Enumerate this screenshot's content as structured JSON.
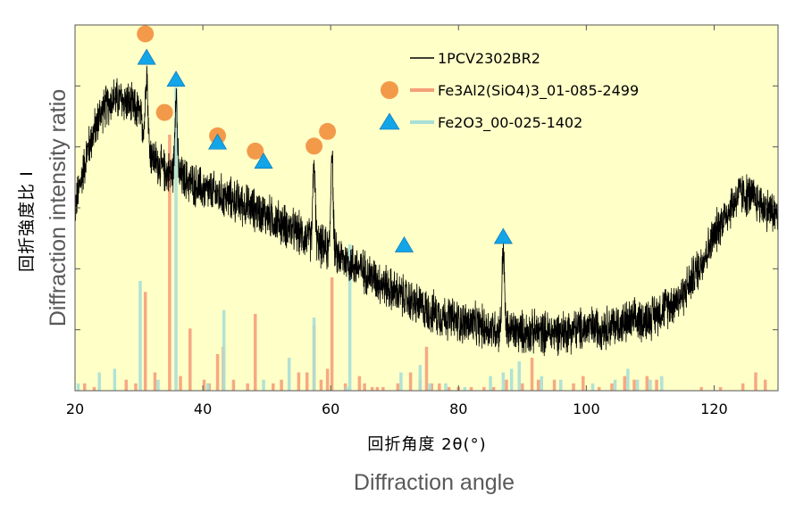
{
  "chart_data": {
    "type": "line",
    "xlim": [
      20,
      130
    ],
    "ylim": [
      0,
      100
    ],
    "x_ticks": [
      20,
      40,
      60,
      80,
      100,
      120
    ],
    "x_tick_labels": [
      "20",
      "40",
      "60",
      "80",
      "100",
      "120"
    ],
    "xlabel_jp": "回折角度 2θ(°)",
    "xlabel_en": "Diffraction angle",
    "ylabel_jp": "回折強度比 I",
    "ylabel_en": "Diffraction intensity ratio",
    "plot_background": "#ffffc8",
    "grid": false,
    "legend_position": "top-right",
    "series": [
      {
        "name": "1PCV2302BR2",
        "kind": "measured",
        "color": "#000000",
        "baseline_shape": [
          [
            20,
            50
          ],
          [
            22,
            66
          ],
          [
            24,
            76
          ],
          [
            26,
            80
          ],
          [
            28,
            79
          ],
          [
            30,
            76
          ],
          [
            32,
            64
          ],
          [
            34,
            60
          ],
          [
            36,
            59
          ],
          [
            40,
            55
          ],
          [
            45,
            52
          ],
          [
            50,
            48
          ],
          [
            55,
            43
          ],
          [
            60,
            38
          ],
          [
            65,
            33
          ],
          [
            70,
            27
          ],
          [
            75,
            22
          ],
          [
            80,
            19
          ],
          [
            85,
            17
          ],
          [
            90,
            16
          ],
          [
            95,
            16
          ],
          [
            100,
            17
          ],
          [
            105,
            18
          ],
          [
            110,
            20
          ],
          [
            115,
            26
          ],
          [
            118,
            35
          ],
          [
            121,
            46
          ],
          [
            124,
            54
          ],
          [
            126,
            53
          ],
          [
            128,
            50
          ],
          [
            130,
            48
          ]
        ],
        "noise_amplitude": 7,
        "peaks": [
          [
            31.2,
            88
          ],
          [
            35.8,
            82
          ],
          [
            57.4,
            62
          ],
          [
            60.2,
            66
          ],
          [
            87.0,
            39
          ]
        ]
      },
      {
        "name": "Fe3Al2(SiO4)3_01-085-2499",
        "kind": "reference",
        "color": "#f5a07a",
        "marker": "circle",
        "marker_color": "#f39a4a",
        "sticks": [
          [
            21.5,
            2
          ],
          [
            23,
            1
          ],
          [
            28,
            3
          ],
          [
            29.5,
            2
          ],
          [
            31,
            27
          ],
          [
            32.5,
            5
          ],
          [
            34.8,
            70
          ],
          [
            36.5,
            4
          ],
          [
            38,
            17
          ],
          [
            40.2,
            3
          ],
          [
            41,
            2
          ],
          [
            42.3,
            10
          ],
          [
            43.2,
            12
          ],
          [
            44.8,
            3
          ],
          [
            47,
            2
          ],
          [
            48.2,
            21
          ],
          [
            51,
            2
          ],
          [
            52.3,
            3
          ],
          [
            55,
            5
          ],
          [
            56.3,
            5
          ],
          [
            57.4,
            18
          ],
          [
            58.5,
            3
          ],
          [
            59.5,
            6
          ],
          [
            60.2,
            31
          ],
          [
            62.3,
            2
          ],
          [
            64.5,
            4
          ],
          [
            65.3,
            2
          ],
          [
            66.5,
            1
          ],
          [
            67.3,
            1
          ],
          [
            68.2,
            1
          ],
          [
            70.5,
            2
          ],
          [
            72.5,
            5
          ],
          [
            74,
            3
          ],
          [
            75,
            12
          ],
          [
            75.8,
            2
          ],
          [
            77,
            2
          ],
          [
            78.5,
            1
          ],
          [
            80,
            1
          ],
          [
            82,
            1
          ],
          [
            84,
            1
          ],
          [
            85.5,
            1
          ],
          [
            87.5,
            3
          ],
          [
            90,
            2
          ],
          [
            91.5,
            9
          ],
          [
            92.5,
            3
          ],
          [
            95,
            3
          ],
          [
            98,
            2
          ],
          [
            99.5,
            4
          ],
          [
            102,
            1
          ],
          [
            104,
            2
          ],
          [
            106,
            4
          ],
          [
            107.5,
            3
          ],
          [
            109.5,
            4
          ],
          [
            111,
            3
          ],
          [
            118,
            1
          ],
          [
            121,
            1
          ],
          [
            124.5,
            2
          ],
          [
            126.5,
            5
          ],
          [
            128,
            3
          ]
        ],
        "marker_x": [
          31.0,
          34.0,
          42.3,
          48.2,
          57.4,
          59.5
        ]
      },
      {
        "name": "Fe2O3_00-025-1402",
        "kind": "reference",
        "color": "#a8dfd6",
        "marker": "triangle",
        "marker_color": "#12a5e8",
        "sticks": [
          [
            20.5,
            2
          ],
          [
            23.8,
            5
          ],
          [
            26.2,
            6
          ],
          [
            30.2,
            30
          ],
          [
            33,
            3
          ],
          [
            35.8,
            83
          ],
          [
            40.8,
            2
          ],
          [
            43.3,
            22
          ],
          [
            49.5,
            3
          ],
          [
            53.5,
            9
          ],
          [
            57.4,
            20
          ],
          [
            62.5,
            1
          ],
          [
            63,
            40
          ],
          [
            71,
            5
          ],
          [
            74,
            7
          ],
          [
            75.5,
            2
          ],
          [
            78,
            2
          ],
          [
            81,
            1
          ],
          [
            85,
            4
          ],
          [
            87,
            5
          ],
          [
            88.3,
            6
          ],
          [
            89.5,
            8
          ],
          [
            93,
            4
          ],
          [
            96,
            3
          ],
          [
            101,
            2
          ],
          [
            104.5,
            3
          ],
          [
            106.5,
            6
          ],
          [
            108,
            3
          ],
          [
            110,
            3
          ],
          [
            111.8,
            4
          ]
        ],
        "marker_x": [
          31.2,
          35.8,
          42.3,
          49.5,
          71.5,
          87.0
        ]
      }
    ]
  }
}
